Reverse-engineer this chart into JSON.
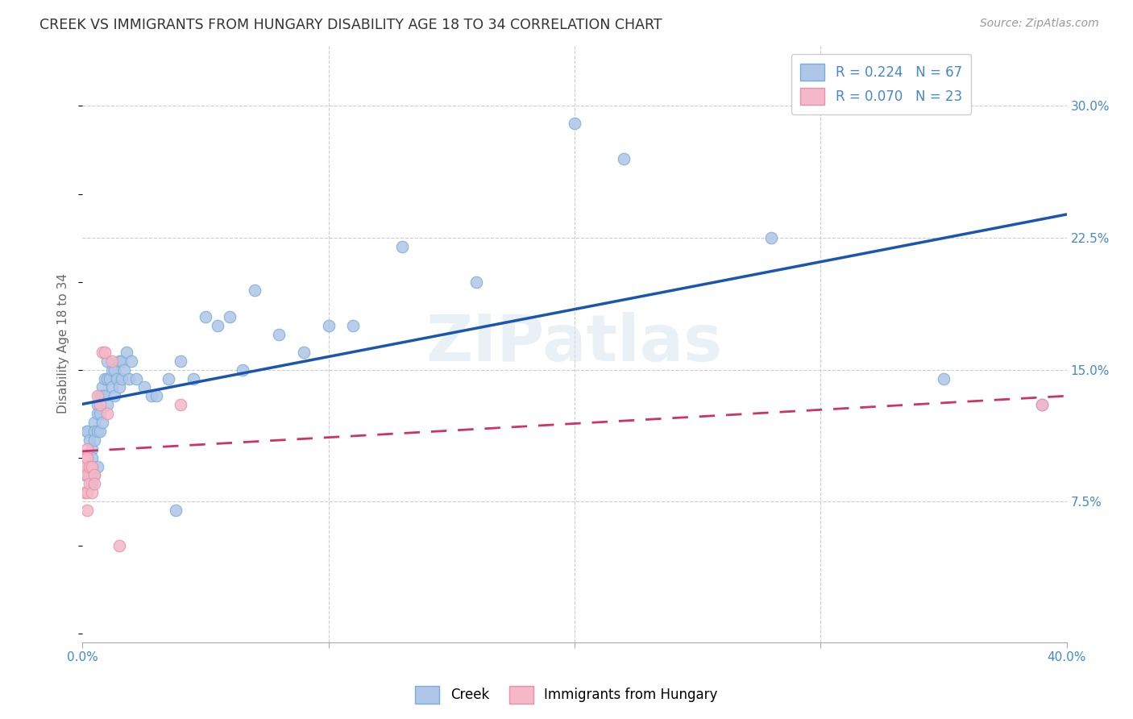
{
  "title": "CREEK VS IMMIGRANTS FROM HUNGARY DISABILITY AGE 18 TO 34 CORRELATION CHART",
  "source": "Source: ZipAtlas.com",
  "ylabel": "Disability Age 18 to 34",
  "xlim": [
    0.0,
    0.4
  ],
  "ylim": [
    -0.005,
    0.335
  ],
  "ytick_labels": [
    "7.5%",
    "15.0%",
    "22.5%",
    "30.0%"
  ],
  "ytick_values": [
    0.075,
    0.15,
    0.225,
    0.3
  ],
  "xtick_values": [
    0.0,
    0.1,
    0.2,
    0.3,
    0.4
  ],
  "xtick_labels_show": [
    "0.0%",
    "",
    "",
    "",
    "40.0%"
  ],
  "grid_color": "#cccccc",
  "background_color": "#ffffff",
  "creek_color": "#aec6e8",
  "creek_edge_color": "#7aadd4",
  "creek_line_color": "#1a56b0",
  "hungary_color": "#f4b8c8",
  "hungary_edge_color": "#e890a8",
  "hungary_line_color": "#cc3366",
  "legend_R1": "0.224",
  "legend_N1": "67",
  "legend_R2": "0.070",
  "legend_N2": "23",
  "title_color": "#333333",
  "axis_label_color": "#4488cc",
  "watermark": "ZIPatlas",
  "creek_x": [
    0.001,
    0.002,
    0.002,
    0.003,
    0.003,
    0.003,
    0.004,
    0.004,
    0.004,
    0.004,
    0.005,
    0.005,
    0.005,
    0.005,
    0.006,
    0.006,
    0.006,
    0.006,
    0.007,
    0.007,
    0.007,
    0.008,
    0.008,
    0.008,
    0.009,
    0.009,
    0.01,
    0.01,
    0.01,
    0.011,
    0.012,
    0.012,
    0.013,
    0.013,
    0.014,
    0.015,
    0.015,
    0.016,
    0.016,
    0.017,
    0.018,
    0.019,
    0.02,
    0.022,
    0.025,
    0.028,
    0.03,
    0.035,
    0.038,
    0.04,
    0.045,
    0.05,
    0.055,
    0.06,
    0.065,
    0.07,
    0.08,
    0.09,
    0.1,
    0.11,
    0.13,
    0.16,
    0.2,
    0.22,
    0.28,
    0.35,
    0.39
  ],
  "creek_y": [
    0.09,
    0.115,
    0.115,
    0.11,
    0.095,
    0.09,
    0.105,
    0.1,
    0.095,
    0.085,
    0.12,
    0.115,
    0.11,
    0.09,
    0.13,
    0.125,
    0.115,
    0.095,
    0.135,
    0.125,
    0.115,
    0.14,
    0.135,
    0.12,
    0.145,
    0.135,
    0.155,
    0.145,
    0.13,
    0.145,
    0.15,
    0.14,
    0.15,
    0.135,
    0.145,
    0.155,
    0.14,
    0.155,
    0.145,
    0.15,
    0.16,
    0.145,
    0.155,
    0.145,
    0.14,
    0.135,
    0.135,
    0.145,
    0.07,
    0.155,
    0.145,
    0.18,
    0.175,
    0.18,
    0.15,
    0.195,
    0.17,
    0.16,
    0.175,
    0.175,
    0.22,
    0.2,
    0.29,
    0.27,
    0.225,
    0.145,
    0.13
  ],
  "hungary_x": [
    0.001,
    0.001,
    0.001,
    0.002,
    0.002,
    0.002,
    0.002,
    0.002,
    0.003,
    0.003,
    0.004,
    0.004,
    0.005,
    0.005,
    0.006,
    0.007,
    0.008,
    0.009,
    0.01,
    0.012,
    0.015,
    0.04,
    0.39
  ],
  "hungary_y": [
    0.1,
    0.095,
    0.08,
    0.105,
    0.1,
    0.09,
    0.08,
    0.07,
    0.095,
    0.085,
    0.095,
    0.08,
    0.09,
    0.085,
    0.135,
    0.13,
    0.16,
    0.16,
    0.125,
    0.155,
    0.05,
    0.13,
    0.13
  ]
}
